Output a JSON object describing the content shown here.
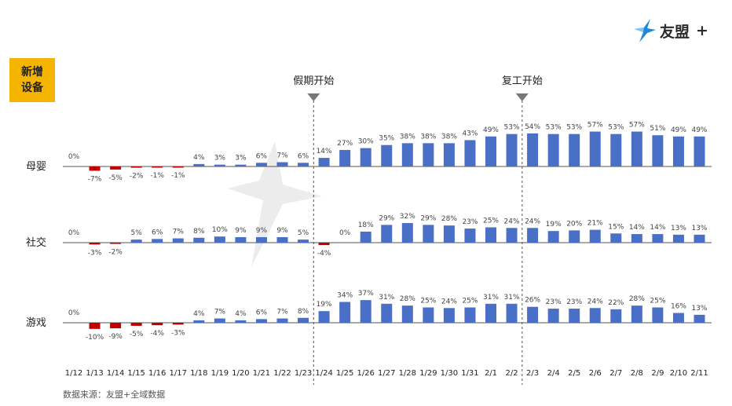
{
  "brand": {
    "name": "友盟",
    "plus": "+",
    "accent": "#1e88d8"
  },
  "badge": {
    "line1": "新增",
    "line2": "设备",
    "color": "#f5b400"
  },
  "source": "数据来源：友盟+全域数据",
  "colors": {
    "positive": "#4a6fc7",
    "negative": "#c00000",
    "axis": "#555555",
    "divider": "#555555",
    "marker": "#777777"
  },
  "chart_data": {
    "type": "bar",
    "title": "新增设备",
    "categories": [
      "1/12",
      "1/13",
      "1/14",
      "1/15",
      "1/16",
      "1/17",
      "1/18",
      "1/19",
      "1/20",
      "1/21",
      "1/22",
      "1/23",
      "1/24",
      "1/25",
      "1/26",
      "1/27",
      "1/28",
      "1/29",
      "1/30",
      "1/31",
      "2/1",
      "2/2",
      "2/3",
      "2/4",
      "2/5",
      "2/6",
      "2/7",
      "2/8",
      "2/9",
      "2/10",
      "2/11"
    ],
    "unit": "%",
    "series": [
      {
        "name": "母婴",
        "values": [
          0,
          -7,
          -5,
          -2,
          -1,
          -1,
          4,
          3,
          3,
          6,
          7,
          6,
          14,
          27,
          30,
          35,
          38,
          38,
          38,
          43,
          49,
          53,
          54,
          53,
          53,
          57,
          53,
          57,
          51,
          49,
          49
        ]
      },
      {
        "name": "社交",
        "values": [
          0,
          -3,
          -2,
          5,
          6,
          7,
          8,
          10,
          9,
          9,
          9,
          5,
          -4,
          0,
          18,
          29,
          32,
          29,
          28,
          23,
          25,
          24,
          24,
          19,
          20,
          21,
          15,
          14,
          14,
          13,
          13
        ]
      },
      {
        "name": "游戏",
        "values": [
          0,
          -10,
          -9,
          -5,
          -4,
          -3,
          4,
          7,
          4,
          6,
          7,
          8,
          19,
          34,
          37,
          31,
          28,
          25,
          24,
          25,
          31,
          31,
          26,
          23,
          23,
          24,
          22,
          28,
          25,
          16,
          13
        ]
      }
    ],
    "annotations": [
      {
        "label": "假期开始",
        "between": [
          "1/23",
          "1/24"
        ]
      },
      {
        "label": "复工开始",
        "between": [
          "2/2",
          "2/3"
        ]
      }
    ]
  }
}
